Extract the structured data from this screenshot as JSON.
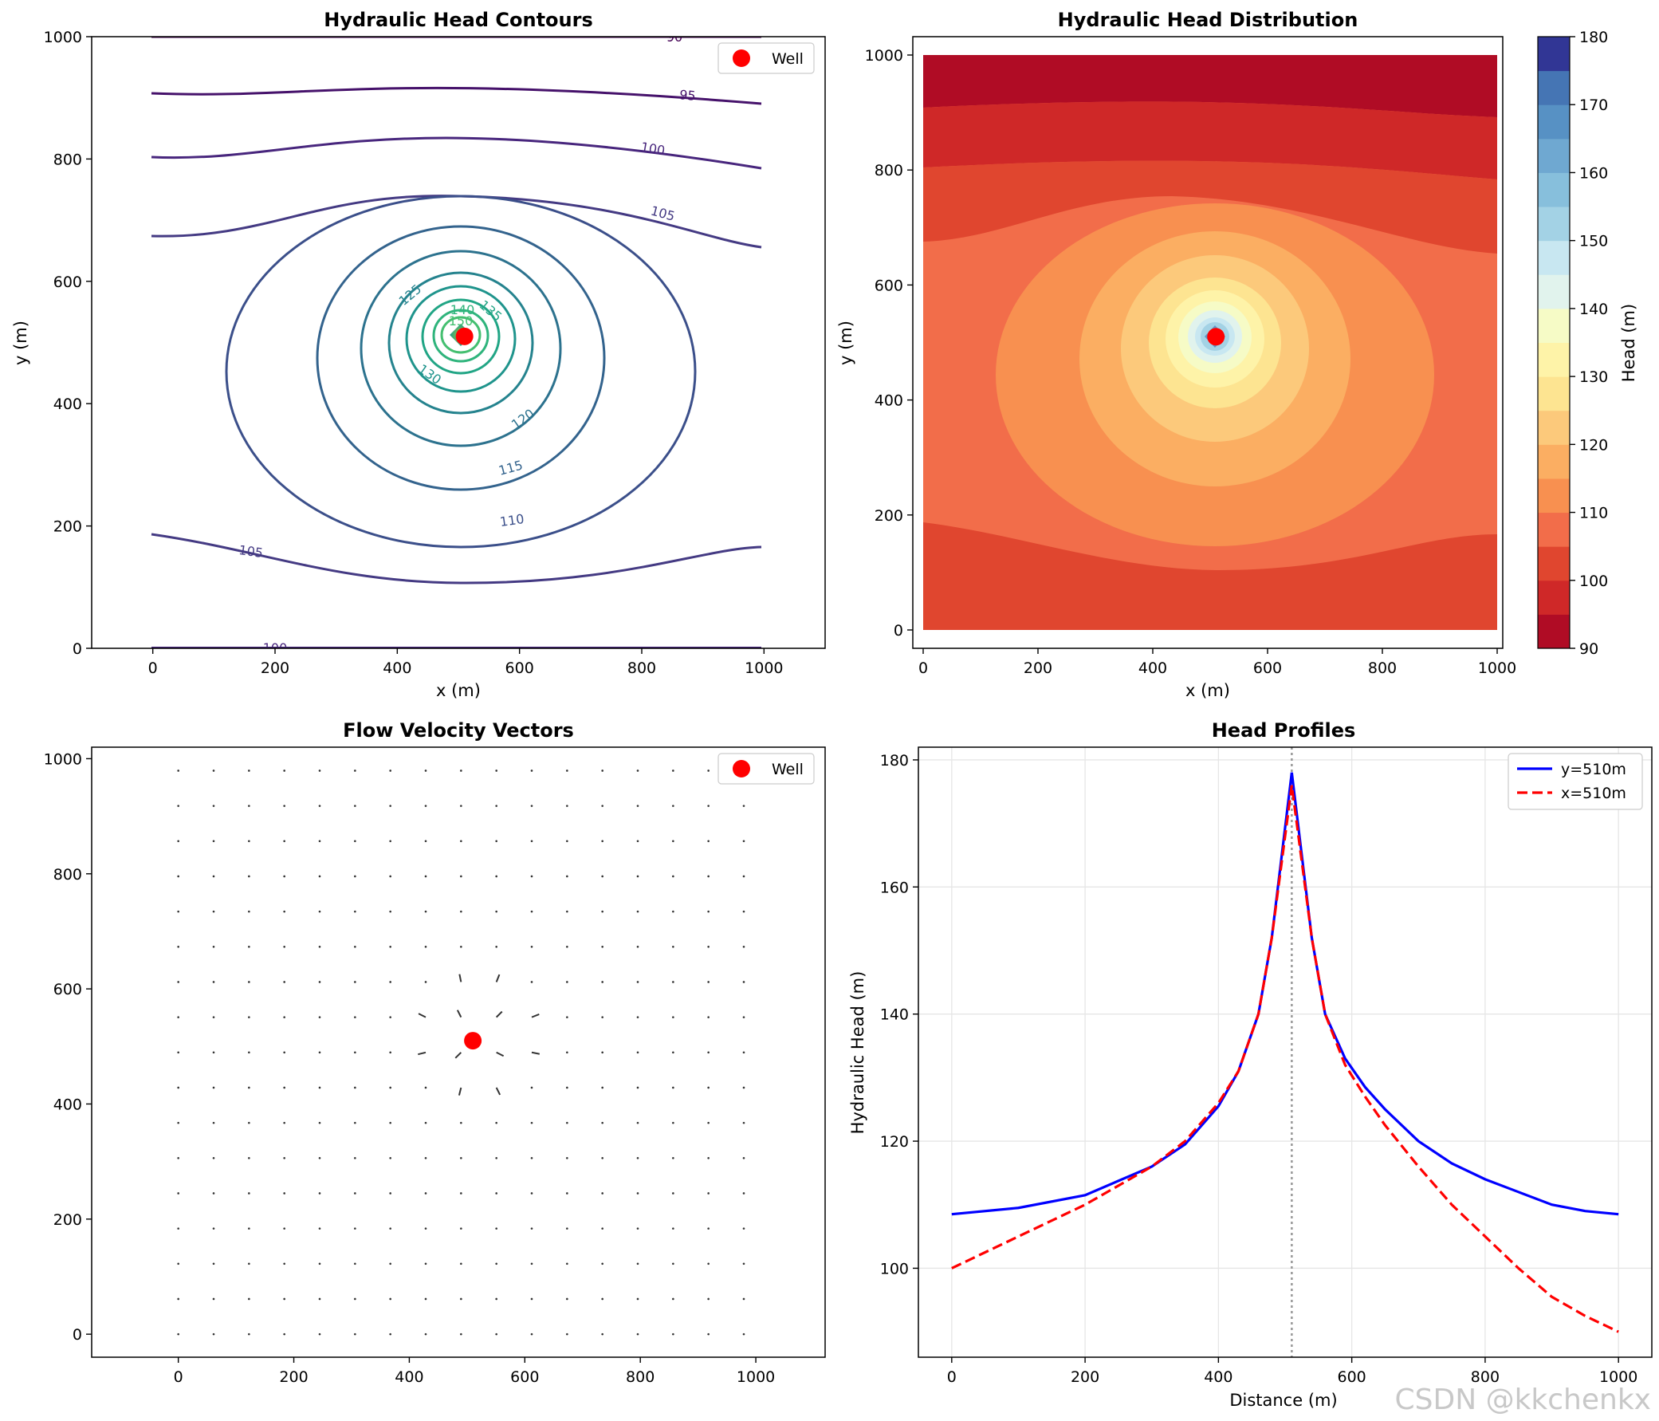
{
  "watermark": "CSDN @kkchenkx",
  "chart_data": [
    {
      "type": "contour",
      "title": "Hydraulic Head Contours",
      "xlabel": "x (m)",
      "ylabel": "y (m)",
      "xlim": [
        -100,
        1100
      ],
      "ylim": [
        0,
        1000
      ],
      "xticks": [
        0,
        200,
        400,
        600,
        800,
        1000
      ],
      "yticks": [
        0,
        200,
        400,
        600,
        800,
        1000
      ],
      "well": {
        "x": 510,
        "y": 510,
        "label": "Well"
      },
      "contour_labels": [
        "90",
        "95",
        "100",
        "105",
        "105",
        "110",
        "115",
        "120",
        "125",
        "130",
        "135",
        "140",
        "150",
        "100"
      ],
      "grid": false,
      "legend": "top-right"
    },
    {
      "type": "heatmap",
      "title": "Hydraulic Head Distribution",
      "xlabel": "x (m)",
      "ylabel": "y (m)",
      "xlim": [
        0,
        1000
      ],
      "ylim": [
        0,
        1000
      ],
      "xticks": [
        0,
        200,
        400,
        600,
        800,
        1000
      ],
      "yticks": [
        0,
        200,
        400,
        600,
        800,
        1000
      ],
      "well": {
        "x": 510,
        "y": 510
      },
      "colorbar": {
        "label": "Head (m)",
        "range": [
          90,
          180
        ],
        "ticks": [
          90,
          100,
          110,
          120,
          130,
          140,
          150,
          160,
          170,
          180
        ],
        "colormap": "RdYlBu",
        "level_step": 5
      },
      "grid": false
    },
    {
      "type": "quiver",
      "title": "Flow Velocity Vectors",
      "xlabel": "",
      "ylabel": "",
      "xlim": [
        -150,
        1120
      ],
      "ylim": [
        -40,
        1020
      ],
      "xticks": [
        0,
        200,
        400,
        600,
        800,
        1000
      ],
      "yticks": [
        0,
        200,
        400,
        600,
        800,
        1000
      ],
      "grid_points": {
        "start": 0,
        "step": 61.2,
        "count": 17
      },
      "well": {
        "x": 510,
        "y": 510,
        "label": "Well"
      },
      "grid": false,
      "legend": "top-right"
    },
    {
      "type": "line",
      "title": "Head Profiles",
      "xlabel": "Distance (m)",
      "ylabel": "Hydraulic Head (m)",
      "xlim": [
        -50,
        1050
      ],
      "ylim": [
        86,
        182
      ],
      "xticks": [
        0,
        200,
        400,
        600,
        800,
        1000
      ],
      "yticks": [
        100,
        120,
        140,
        160,
        180
      ],
      "vline_x": 510,
      "grid": true,
      "legend": "top-right",
      "series": [
        {
          "name": "y=510m",
          "color": "#0000ff",
          "style": "solid",
          "x": [
            0,
            100,
            200,
            300,
            350,
            400,
            430,
            460,
            480,
            495,
            510,
            525,
            540,
            560,
            590,
            620,
            650,
            700,
            750,
            800,
            850,
            900,
            950,
            1000
          ],
          "y": [
            108.5,
            109.5,
            111.5,
            116,
            119.5,
            125.5,
            131,
            140,
            152,
            165,
            178,
            165,
            152,
            140,
            133,
            128.5,
            125,
            120,
            116.5,
            114,
            112,
            110,
            109,
            108.5
          ]
        },
        {
          "name": "x=510m",
          "color": "#ff0000",
          "style": "dashed",
          "x": [
            0,
            100,
            200,
            300,
            350,
            400,
            430,
            460,
            480,
            495,
            510,
            525,
            540,
            560,
            590,
            620,
            650,
            700,
            750,
            800,
            850,
            900,
            950,
            1000
          ],
          "y": [
            100,
            105,
            110,
            116,
            120,
            126,
            131,
            140,
            152,
            164,
            176,
            164,
            152,
            140,
            132,
            127,
            122.5,
            116,
            110,
            105,
            100,
            95.5,
            92.5,
            90
          ]
        }
      ]
    }
  ]
}
